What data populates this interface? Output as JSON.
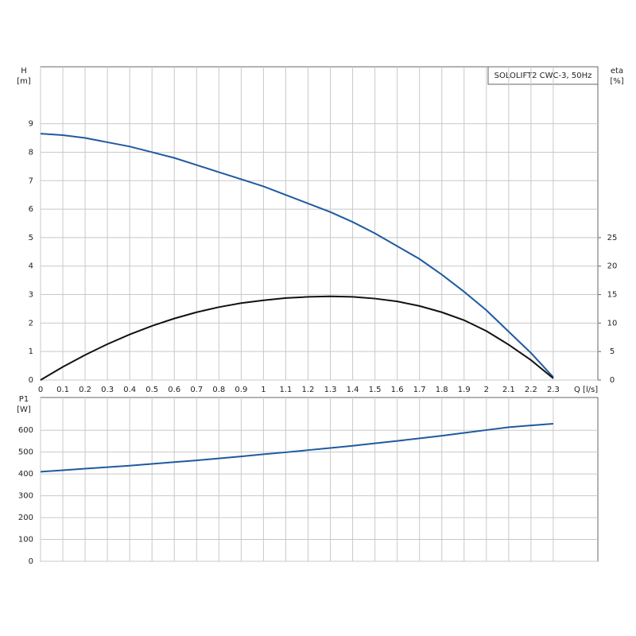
{
  "chart_data": [
    {
      "type": "line",
      "title": "SOLOLIFT2 CWC-3, 50Hz",
      "ylabel": "H",
      "yunit": "[m]",
      "y2label": "eta",
      "y2unit": "[%]",
      "xlabel": "Q [l/s]",
      "x": [
        0,
        0.1,
        0.2,
        0.3,
        0.4,
        0.5,
        0.6,
        0.7,
        0.8,
        0.9,
        1.0,
        1.1,
        1.2,
        1.3,
        1.4,
        1.5,
        1.6,
        1.7,
        1.8,
        1.9,
        2.0,
        2.1,
        2.2,
        2.3
      ],
      "series": [
        {
          "name": "H",
          "color": "#1f5aa0",
          "values": [
            8.65,
            8.6,
            8.5,
            8.35,
            8.2,
            8.0,
            7.8,
            7.55,
            7.3,
            7.05,
            6.8,
            6.5,
            6.2,
            5.9,
            5.55,
            5.15,
            4.7,
            4.25,
            3.7,
            3.1,
            2.45,
            1.7,
            0.95,
            0.1
          ]
        },
        {
          "name": "eta",
          "color": "#111111",
          "axis": "y2",
          "values": [
            0,
            2.3,
            4.4,
            6.3,
            8.0,
            9.5,
            10.8,
            11.9,
            12.8,
            13.5,
            14.0,
            14.4,
            14.6,
            14.7,
            14.6,
            14.3,
            13.8,
            13.0,
            11.9,
            10.5,
            8.6,
            6.2,
            3.5,
            0.3
          ]
        }
      ],
      "xlim": [
        0,
        2.5
      ],
      "xticks": [
        0,
        0.1,
        0.2,
        0.3,
        0.4,
        0.5,
        0.6,
        0.7,
        0.8,
        0.9,
        1.0,
        1.1,
        1.2,
        1.3,
        1.4,
        1.5,
        1.6,
        1.7,
        1.8,
        1.9,
        2.0,
        2.1,
        2.2,
        2.3
      ],
      "ylim": [
        0,
        11
      ],
      "yticks": [
        0,
        1,
        2,
        3,
        4,
        5,
        6,
        7,
        8,
        9
      ],
      "y2lim": [
        0,
        55
      ],
      "y2ticks": [
        0,
        5,
        10,
        15,
        20,
        25
      ],
      "grid": true
    },
    {
      "type": "line",
      "ylabel": "P1",
      "yunit": "[W]",
      "x": [
        0,
        0.1,
        0.2,
        0.3,
        0.4,
        0.5,
        0.6,
        0.7,
        0.8,
        0.9,
        1.0,
        1.1,
        1.2,
        1.3,
        1.4,
        1.5,
        1.6,
        1.7,
        1.8,
        1.9,
        2.0,
        2.1,
        2.2,
        2.3
      ],
      "series": [
        {
          "name": "P1",
          "color": "#1f5aa0",
          "values": [
            410,
            417,
            424,
            431,
            438,
            446,
            454,
            462,
            471,
            480,
            490,
            499,
            509,
            519,
            529,
            540,
            551,
            563,
            575,
            588,
            601,
            614,
            622,
            630
          ]
        }
      ],
      "xlim": [
        0,
        2.5
      ],
      "ylim": [
        0,
        750
      ],
      "yticks": [
        0,
        100,
        200,
        300,
        400,
        500,
        600
      ],
      "grid": true
    }
  ]
}
